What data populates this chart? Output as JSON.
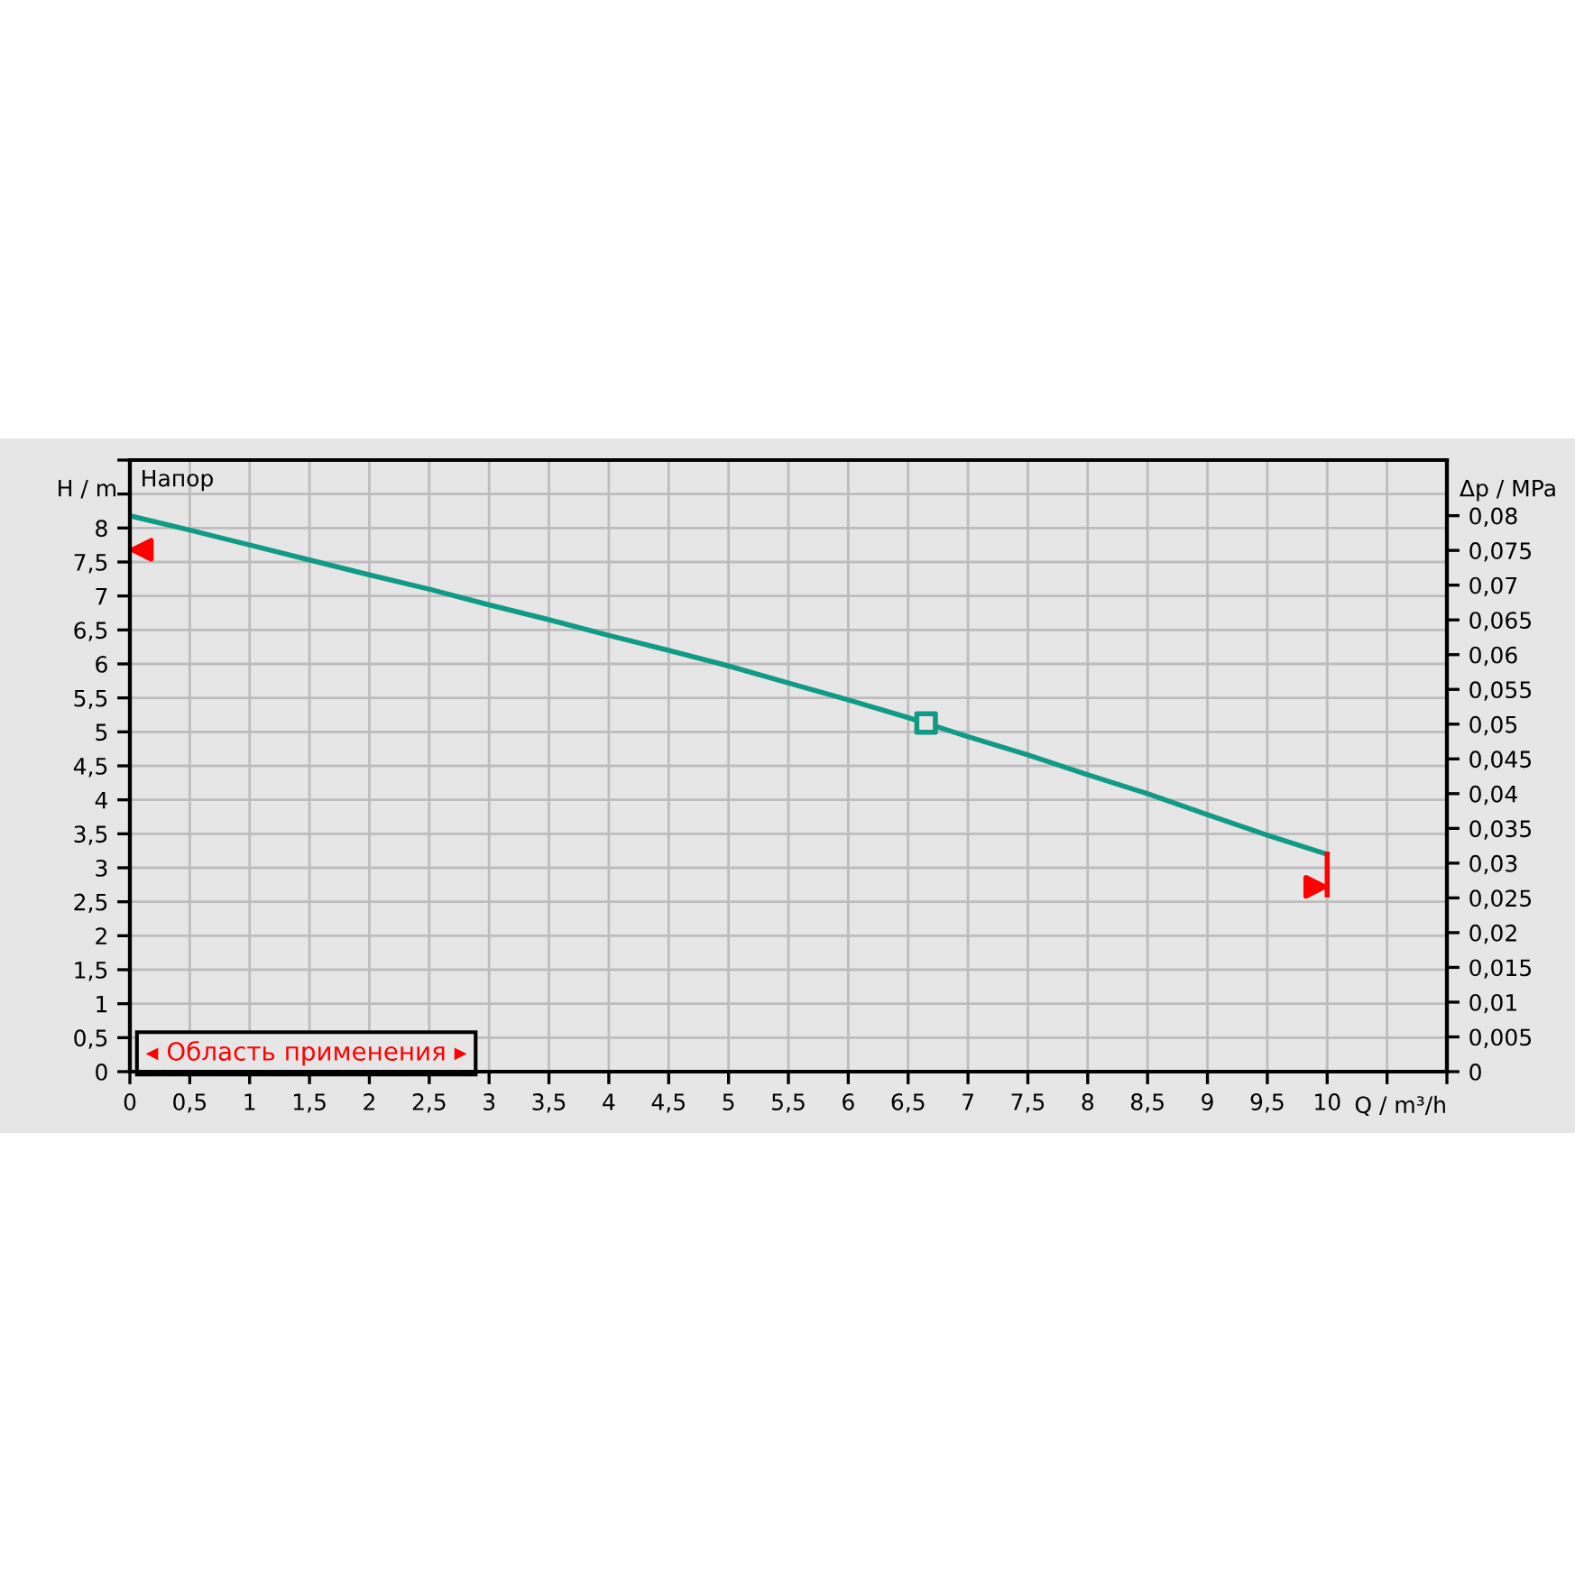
{
  "chart_data": {
    "type": "line",
    "xlabel": "Q / m³/h",
    "ylabel": "H / m",
    "y2label": "Δp / MPa",
    "annotations": [
      "Напор",
      "◂ Область применения ▸"
    ],
    "grid": true,
    "legend": false,
    "series": [
      {
        "color": "#119a86",
        "x": [
          0,
          0.5,
          1,
          1.5,
          2,
          2.5,
          3,
          3.5,
          4,
          4.5,
          5,
          5.5,
          6,
          6.5,
          7,
          7.5,
          8,
          8.5,
          9,
          9.5,
          10
        ],
        "values": [
          8.18,
          7.97,
          7.75,
          7.53,
          7.31,
          7.1,
          6.87,
          6.65,
          6.42,
          6.2,
          5.97,
          5.72,
          5.47,
          5.21,
          4.93,
          4.66,
          4.37,
          4.09,
          3.78,
          3.48,
          3.2
        ]
      },
      {
        "type": "scatter",
        "marker": "square",
        "color": "#119a86",
        "x": [
          6.65
        ],
        "values": [
          5.13
        ]
      },
      {
        "type": "line",
        "color": "#ff0000",
        "x": [
          10,
          10
        ],
        "values": [
          3.2,
          2.6
        ]
      },
      {
        "type": "scatter",
        "marker": "triangle_left",
        "color": "#ff0000",
        "x": [
          0.1
        ],
        "values": [
          7.68
        ]
      },
      {
        "type": "scatter",
        "marker": "triangle_right",
        "color": "#ff0000",
        "x": [
          9.9
        ],
        "values": [
          2.72
        ]
      }
    ],
    "xlim": [
      0,
      11
    ],
    "xticks": [
      0,
      {
        "value": 0.5,
        "label": "0,5"
      },
      1,
      {
        "value": 1.5,
        "label": "1,5"
      },
      2,
      {
        "value": 2.5,
        "label": "2,5"
      },
      3,
      {
        "value": 3.5,
        "label": "3,5"
      },
      4,
      {
        "value": 4.5,
        "label": "4,5"
      },
      5,
      {
        "value": 5.5,
        "label": "5,5"
      },
      6,
      {
        "value": 6.5,
        "label": "6,5"
      },
      7,
      {
        "value": 7.5,
        "label": "7,5"
      },
      8,
      {
        "value": 8.5,
        "label": "8,5"
      },
      9,
      {
        "value": 9.5,
        "label": "9,5"
      },
      10,
      {
        "value": 10.5,
        "label": null
      },
      {
        "value": 11,
        "label": null
      }
    ],
    "ylim": [
      0,
      9
    ],
    "yticks": [
      0,
      {
        "value": 0.5,
        "label": "0,5"
      },
      1,
      {
        "value": 1.5,
        "label": "1,5"
      },
      2,
      {
        "value": 2.5,
        "label": "2,5"
      },
      3,
      {
        "value": 3.5,
        "label": "3,5"
      },
      4,
      {
        "value": 4.5,
        "label": "4,5"
      },
      5,
      {
        "value": 5.5,
        "label": "5,5"
      },
      6,
      {
        "value": 6.5,
        "label": "6,5"
      },
      7,
      {
        "value": 7.5,
        "label": "7,5"
      },
      8,
      {
        "value": 8.5,
        "label": null
      },
      {
        "value": 9,
        "label": null
      }
    ],
    "y2lim": [
      0,
      0.088
    ],
    "y2ticks": [
      0,
      {
        "value": 0.005,
        "label": "0,005"
      },
      {
        "value": 0.01,
        "label": "0,01"
      },
      {
        "value": 0.015,
        "label": "0,015"
      },
      {
        "value": 0.02,
        "label": "0,02"
      },
      {
        "value": 0.025,
        "label": "0,025"
      },
      {
        "value": 0.03,
        "label": "0,03"
      },
      {
        "value": 0.035,
        "label": "0,035"
      },
      {
        "value": 0.04,
        "label": "0,04"
      },
      {
        "value": 0.045,
        "label": "0,045"
      },
      {
        "value": 0.05,
        "label": "0,05"
      },
      {
        "value": 0.055,
        "label": "0,055"
      },
      {
        "value": 0.06,
        "label": "0,06"
      },
      {
        "value": 0.065,
        "label": "0,065"
      },
      {
        "value": 0.07,
        "label": "0,07"
      },
      {
        "value": 0.075,
        "label": "0,075"
      },
      {
        "value": 0.08,
        "label": "0,08"
      }
    ]
  }
}
